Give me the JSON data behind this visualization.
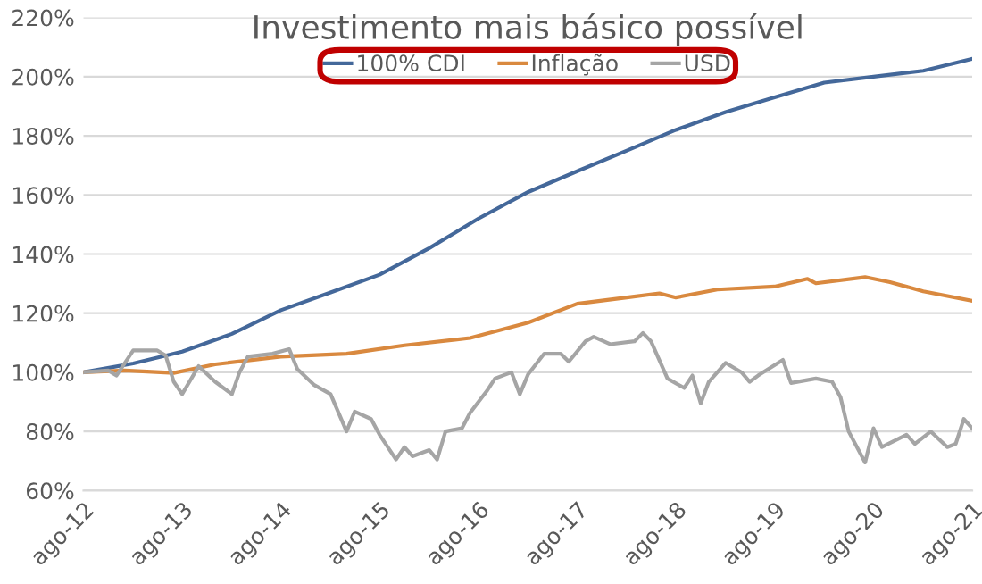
{
  "chart_data": {
    "type": "line",
    "title": "Investimento mais básico possível",
    "series": [
      {
        "name": "100% CDI",
        "color": "#44689a",
        "x": [
          "2012-08",
          "2013-02",
          "2013-08",
          "2014-02",
          "2014-08",
          "2015-02",
          "2015-08",
          "2016-02",
          "2016-08",
          "2017-02",
          "2017-08",
          "2018-02",
          "2018-08",
          "2019-02",
          "2019-08",
          "2020-02",
          "2020-08",
          "2021-02",
          "2021-08"
        ],
        "values": [
          100,
          103,
          107,
          113,
          121,
          127,
          133,
          142,
          152,
          161,
          168,
          175,
          182,
          188,
          193,
          198,
          200,
          202,
          206
        ]
      },
      {
        "name": "Inflação",
        "color": "#d9893f",
        "x": [
          "2012-08",
          "2013-01",
          "2013-07",
          "2013-12",
          "2014-08",
          "2015-04",
          "2015-11",
          "2016-07",
          "2017-02",
          "2017-08",
          "2018-02",
          "2018-06",
          "2018-08",
          "2019-01",
          "2019-08",
          "2019-12",
          "2020-01",
          "2020-07",
          "2020-10",
          "2021-02",
          "2021-08"
        ],
        "values": [
          100,
          100.6,
          99.8,
          102.7,
          105.3,
          106.3,
          109.1,
          111.6,
          116.8,
          123.2,
          125.3,
          126.7,
          125.3,
          128,
          129,
          131.6,
          130.1,
          132.2,
          130.5,
          127.4,
          124.2
        ]
      },
      {
        "name": "USD",
        "color": "#a5a5a5",
        "x": [
          "2012-08",
          "2012-11",
          "2012-12",
          "2013-02",
          "2013-05",
          "2013-06",
          "2013-07",
          "2013-08",
          "2013-10",
          "2013-12",
          "2014-02",
          "2014-03",
          "2014-04",
          "2014-07",
          "2014-09",
          "2014-10",
          "2014-12",
          "2015-02",
          "2015-04",
          "2015-05",
          "2015-07",
          "2015-08",
          "2015-10",
          "2015-11",
          "2015-12",
          "2016-02",
          "2016-03",
          "2016-04",
          "2016-06",
          "2016-07",
          "2016-09",
          "2016-10",
          "2016-12",
          "2017-01",
          "2017-02",
          "2017-04",
          "2017-06",
          "2017-07",
          "2017-09",
          "2017-10",
          "2017-12",
          "2018-03",
          "2018-04",
          "2018-05",
          "2018-07",
          "2018-09",
          "2018-10",
          "2018-11",
          "2018-12",
          "2019-02",
          "2019-04",
          "2019-05",
          "2019-06",
          "2019-09",
          "2019-10",
          "2020-01",
          "2020-03",
          "2020-04",
          "2020-05",
          "2020-07",
          "2020-08",
          "2020-09",
          "2020-12",
          "2021-01",
          "2021-03",
          "2021-05",
          "2021-06",
          "2021-07",
          "2021-08"
        ],
        "values": [
          100,
          100.6,
          98.9,
          107.4,
          107.4,
          105.7,
          96.8,
          92.6,
          102.1,
          96.8,
          92.6,
          100,
          105.3,
          106.3,
          107.8,
          101.1,
          95.8,
          92.6,
          80,
          86.7,
          84.2,
          78.9,
          70.5,
          74.7,
          71.6,
          73.7,
          70.5,
          80,
          81.1,
          86.3,
          93.7,
          97.9,
          100,
          92.6,
          99.4,
          106.3,
          106.3,
          103.6,
          110.5,
          112,
          109.5,
          110.5,
          113.3,
          110.5,
          97.9,
          94.7,
          98.9,
          89.5,
          96.8,
          103.2,
          100,
          96.8,
          98.9,
          104.2,
          96.4,
          97.9,
          96.8,
          91.6,
          80,
          69.5,
          81.1,
          74.7,
          78.9,
          75.8,
          80,
          74.7,
          75.8,
          84.2,
          81.1
        ]
      }
    ],
    "xlim": [
      "2012-08",
      "2021-08"
    ],
    "xticks": [
      {
        "value": "2012-08",
        "label": "ago-12"
      },
      {
        "value": "2013-08",
        "label": "ago-13"
      },
      {
        "value": "2014-08",
        "label": "ago-14"
      },
      {
        "value": "2015-08",
        "label": "ago-15"
      },
      {
        "value": "2016-08",
        "label": "ago-16"
      },
      {
        "value": "2017-08",
        "label": "ago-17"
      },
      {
        "value": "2018-08",
        "label": "ago-18"
      },
      {
        "value": "2019-08",
        "label": "ago-19"
      },
      {
        "value": "2020-08",
        "label": "ago-20"
      },
      {
        "value": "2021-08",
        "label": "ago-21"
      }
    ],
    "ylim": [
      60,
      220
    ],
    "yticks": [
      {
        "value": 60,
        "label": "60%"
      },
      {
        "value": 80,
        "label": "80%"
      },
      {
        "value": 100,
        "label": "100%"
      },
      {
        "value": 120,
        "label": "120%"
      },
      {
        "value": 140,
        "label": "140%"
      },
      {
        "value": 160,
        "label": "160%"
      },
      {
        "value": 180,
        "label": "180%"
      },
      {
        "value": 200,
        "label": "200%"
      },
      {
        "value": 220,
        "label": "220%"
      }
    ],
    "grid": "y",
    "legend": "top",
    "marker": "none",
    "line_style": "solid"
  }
}
